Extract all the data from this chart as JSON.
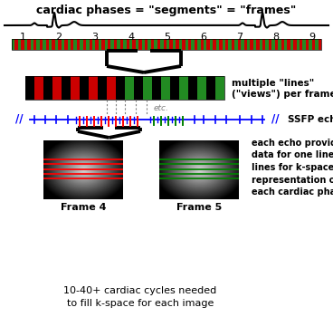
{
  "title": "cardiac phases = \"segments\" = \"frames\"",
  "bg_color": "#ffffff",
  "ecg_color": "#000000",
  "segment_numbers": [
    "1",
    "2",
    "3",
    "4",
    "5",
    "6",
    "7",
    "8",
    "9"
  ],
  "top_bar_colors": [
    "#228B22",
    "#CC0000"
  ],
  "middle_bar_left": [
    "#000000",
    "#CC0000"
  ],
  "middle_bar_right": [
    "#000000",
    "#228B22"
  ],
  "text_multiple_lines": "multiple \"lines\"\n(\"views\") per frame",
  "text_ssfp": "SSFP echoes",
  "text_echo": "each echo provides\ndata for one line of\nlines for k-space\nrepresentation of\neach cardiac phase",
  "text_frame4": "Frame 4",
  "text_frame5": "Frame 5",
  "text_bottom": "10-40+ cardiac cycles needed\nto fill k-space for each image",
  "text_etc": "etc."
}
